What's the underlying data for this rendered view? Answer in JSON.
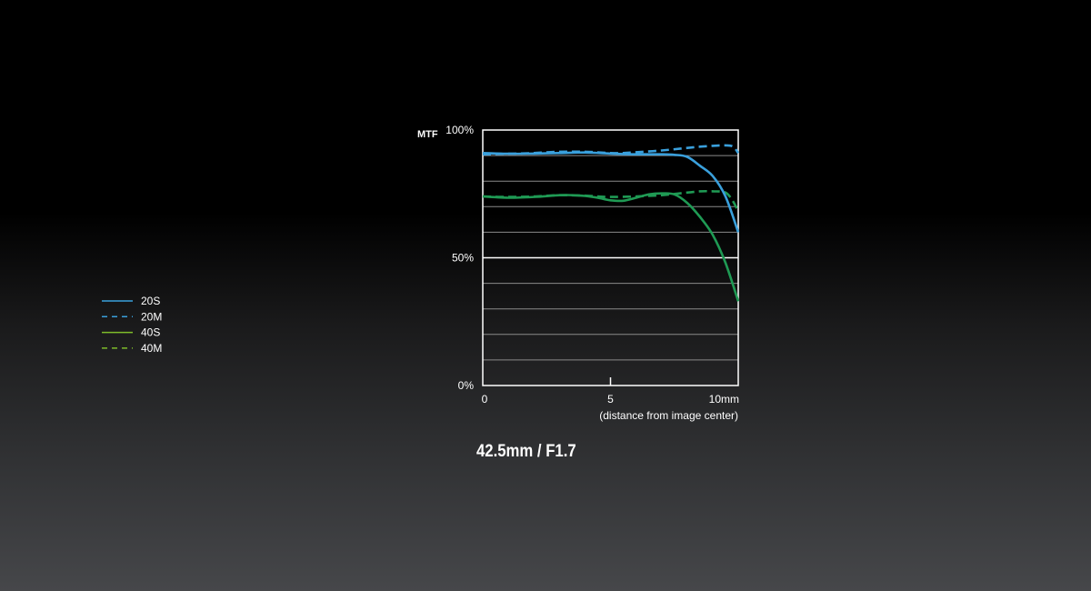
{
  "caption": "42.5mm / F1.7",
  "chart_data": {
    "type": "line",
    "ylabel": "MTF",
    "xlabel": "(distance from image center)",
    "xlim": [
      0,
      10
    ],
    "ylim": [
      0,
      100
    ],
    "x_ticks": [
      {
        "value": 0,
        "label": "0"
      },
      {
        "value": 5,
        "label": "5"
      },
      {
        "value": 10,
        "label": "10mm"
      }
    ],
    "y_ticks": [
      {
        "value": 100,
        "label": "100%"
      },
      {
        "value": 50,
        "label": "50%"
      },
      {
        "value": 0,
        "label": "0%"
      }
    ],
    "grid": true,
    "gridlines_y": [
      10,
      20,
      30,
      40,
      50,
      60,
      70,
      80,
      90
    ],
    "legend_placement": "left",
    "series": [
      {
        "name": "20S",
        "color": "#3aa0dc",
        "dash": false,
        "x": [
          0,
          1,
          2,
          3,
          4,
          5,
          6,
          7,
          7.5,
          8,
          8.5,
          9,
          9.5,
          10
        ],
        "y": [
          91,
          90.7,
          90.8,
          91,
          91.2,
          90.8,
          90.5,
          90.5,
          90.3,
          89.5,
          86,
          82,
          74,
          60
        ]
      },
      {
        "name": "20M",
        "color": "#3aa0dc",
        "dash": true,
        "x": [
          0,
          1,
          2,
          3,
          4,
          5,
          5.5,
          6,
          7,
          8,
          8.5,
          9,
          9.5,
          9.8,
          10
        ],
        "y": [
          90.5,
          90.7,
          91,
          91.5,
          91.5,
          91,
          91,
          91.3,
          92,
          93,
          93.5,
          93.8,
          94,
          93.5,
          91
        ]
      },
      {
        "name": "40S",
        "color": "#1f9a54",
        "dash": false,
        "x": [
          0,
          1,
          2,
          3,
          3.5,
          4,
          4.5,
          5,
          5.5,
          6,
          6.5,
          7,
          7.5,
          8,
          8.5,
          9,
          9.5,
          10
        ],
        "y": [
          74,
          73.5,
          73.8,
          74.5,
          74.5,
          74.2,
          73.5,
          72.5,
          72.3,
          73.5,
          74.8,
          75.2,
          74.8,
          71.5,
          66,
          59,
          48,
          33
        ]
      },
      {
        "name": "40M",
        "color": "#1f9a54",
        "dash": true,
        "x": [
          0,
          1,
          2,
          3,
          4,
          4.5,
          5,
          6,
          7,
          7.5,
          8,
          8.5,
          9,
          9.5,
          9.8,
          10
        ],
        "y": [
          74,
          73.8,
          74,
          74.5,
          74.3,
          74,
          73.8,
          74,
          74.5,
          75,
          75.5,
          76,
          76,
          75.5,
          72,
          68
        ]
      }
    ],
    "legend": [
      {
        "name": "20S",
        "color": "#3aa0dc",
        "dash": false
      },
      {
        "name": "20M",
        "color": "#3aa0dc",
        "dash": true
      },
      {
        "name": "40S",
        "color": "#7fbc2a",
        "dash": false
      },
      {
        "name": "40M",
        "color": "#7fbc2a",
        "dash": true
      }
    ]
  }
}
